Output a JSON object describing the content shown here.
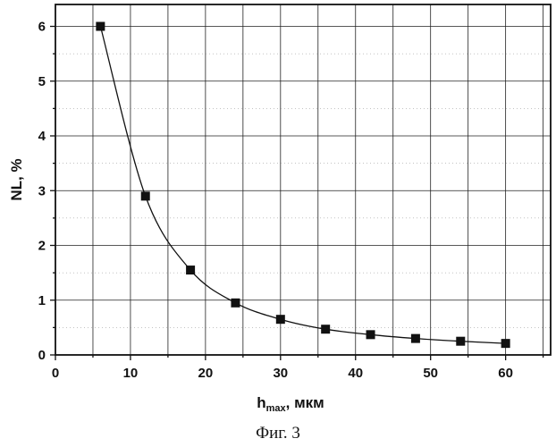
{
  "chart_data": {
    "type": "line",
    "markers": "square",
    "title": "",
    "xlabel": {
      "main": "h",
      "sub": "max",
      "rest": ", мкм"
    },
    "ylabel": "NL, %",
    "xlim": [
      0,
      66
    ],
    "ylim": [
      0,
      6.4
    ],
    "xticks": [
      0,
      10,
      20,
      30,
      40,
      50,
      60
    ],
    "yticks": [
      0,
      1,
      2,
      3,
      4,
      5,
      6
    ],
    "grid": true,
    "legend": "none",
    "series": [
      {
        "x": [
          6,
          12,
          18,
          24,
          30,
          36,
          42,
          48,
          54,
          60
        ],
        "y": [
          6.0,
          2.9,
          1.55,
          0.95,
          0.65,
          0.47,
          0.37,
          0.3,
          0.25,
          0.21
        ]
      }
    ]
  },
  "caption": "Фиг. 3",
  "colors": {
    "line": "#111111",
    "grid": "#222222",
    "marker": "#111111"
  }
}
